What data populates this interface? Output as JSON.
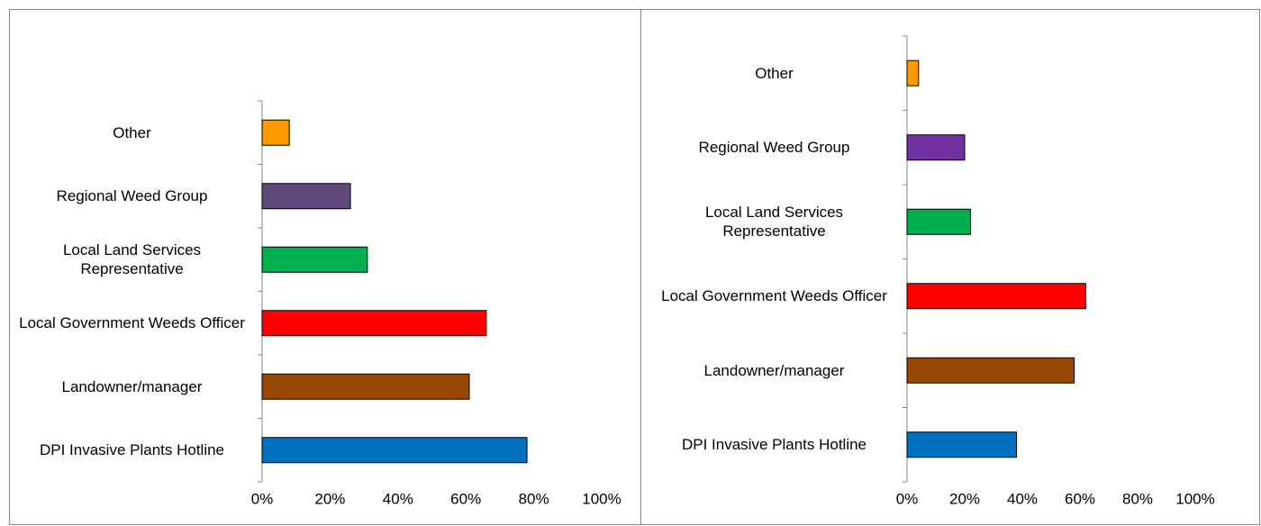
{
  "chart_data": [
    {
      "type": "bar",
      "orientation": "horizontal",
      "categories": [
        "DPI Invasive Plants Hotline",
        "Landowner/manager",
        "Local Government Weeds Officer",
        "Local Land Services Representative",
        "Regional Weed Group",
        "Other"
      ],
      "values": [
        78,
        61,
        66,
        31,
        26,
        8
      ],
      "colors": [
        "#0070c0",
        "#974706",
        "#ff0000",
        "#00b050",
        "#604a7b",
        "#ff9900"
      ],
      "xlim": [
        0,
        100
      ],
      "xticks": [
        {
          "value": 0,
          "label": "0%"
        },
        {
          "value": 20,
          "label": "20%"
        },
        {
          "value": 40,
          "label": "40%"
        },
        {
          "value": 60,
          "label": "60%"
        },
        {
          "value": 80,
          "label": "80%"
        },
        {
          "value": 100,
          "label": "100%"
        }
      ],
      "grid": false
    },
    {
      "type": "bar",
      "orientation": "horizontal",
      "categories": [
        "DPI Invasive Plants Hotline",
        "Landowner/manager",
        "Local Government Weeds Officer",
        "Local Land Services Representative",
        "Regional Weed Group",
        "Other"
      ],
      "values": [
        38,
        58,
        62,
        22,
        20,
        4
      ],
      "colors": [
        "#0070c0",
        "#974706",
        "#ff0000",
        "#00b050",
        "#7030a0",
        "#ff9900"
      ],
      "xlim": [
        0,
        100
      ],
      "xticks": [
        {
          "value": 0,
          "label": "0%"
        },
        {
          "value": 20,
          "label": "20%"
        },
        {
          "value": 40,
          "label": "40%"
        },
        {
          "value": 60,
          "label": "60%"
        },
        {
          "value": 80,
          "label": "80%"
        },
        {
          "value": 100,
          "label": "100%"
        }
      ],
      "grid": false
    }
  ]
}
